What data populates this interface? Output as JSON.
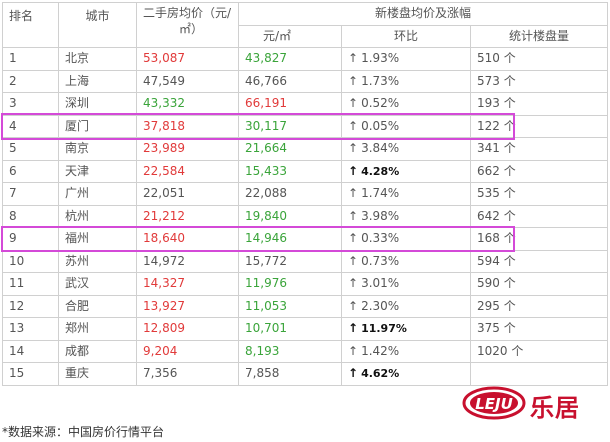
{
  "table": {
    "headers": {
      "rank": "排名",
      "city": "城市",
      "secondhand_line1": "二手房均价（元/",
      "secondhand_line2": "㎡）",
      "newhouse_group": "新楼盘均价及涨幅",
      "newhouse_price": "元/㎡",
      "mom": "环比",
      "count": "统计楼盘量"
    },
    "rows": [
      {
        "rank": "1",
        "city": "北京",
        "secondhand": "53,087",
        "secondhand_color": "red",
        "newprice": "43,827",
        "newprice_color": "green",
        "mom": "1.93%",
        "mom_bold": false,
        "count": "510 个"
      },
      {
        "rank": "2",
        "city": "上海",
        "secondhand": "47,549",
        "secondhand_color": "gray",
        "newprice": "46,766",
        "newprice_color": "gray",
        "mom": "1.73%",
        "mom_bold": false,
        "count": "573 个"
      },
      {
        "rank": "3",
        "city": "深圳",
        "secondhand": "43,332",
        "secondhand_color": "green",
        "newprice": "66,191",
        "newprice_color": "red",
        "mom": "0.52%",
        "mom_bold": false,
        "count": "193 个"
      },
      {
        "rank": "4",
        "city": "厦门",
        "secondhand": "37,818",
        "secondhand_color": "red",
        "newprice": "30,117",
        "newprice_color": "green",
        "mom": "0.05%",
        "mom_bold": false,
        "count": "122 个"
      },
      {
        "rank": "5",
        "city": "南京",
        "secondhand": "23,989",
        "secondhand_color": "red",
        "newprice": "21,664",
        "newprice_color": "green",
        "mom": "3.84%",
        "mom_bold": false,
        "count": "341 个"
      },
      {
        "rank": "6",
        "city": "天津",
        "secondhand": "22,584",
        "secondhand_color": "red",
        "newprice": "15,433",
        "newprice_color": "green",
        "mom": "4.28%",
        "mom_bold": true,
        "count": "662 个"
      },
      {
        "rank": "7",
        "city": "广州",
        "secondhand": "22,051",
        "secondhand_color": "gray",
        "newprice": "22,088",
        "newprice_color": "gray",
        "mom": "1.74%",
        "mom_bold": false,
        "count": "535 个"
      },
      {
        "rank": "8",
        "city": "杭州",
        "secondhand": "21,212",
        "secondhand_color": "red",
        "newprice": "19,840",
        "newprice_color": "green",
        "mom": "3.98%",
        "mom_bold": false,
        "count": "642 个"
      },
      {
        "rank": "9",
        "city": "福州",
        "secondhand": "18,640",
        "secondhand_color": "red",
        "newprice": "14,946",
        "newprice_color": "green",
        "mom": "0.33%",
        "mom_bold": false,
        "count": "168 个"
      },
      {
        "rank": "10",
        "city": "苏州",
        "secondhand": "14,972",
        "secondhand_color": "gray",
        "newprice": "15,772",
        "newprice_color": "gray",
        "mom": "0.73%",
        "mom_bold": false,
        "count": "594 个"
      },
      {
        "rank": "11",
        "city": "武汉",
        "secondhand": "14,327",
        "secondhand_color": "red",
        "newprice": "11,976",
        "newprice_color": "green",
        "mom": "3.01%",
        "mom_bold": false,
        "count": "590 个"
      },
      {
        "rank": "12",
        "city": "合肥",
        "secondhand": "13,927",
        "secondhand_color": "red",
        "newprice": "11,053",
        "newprice_color": "green",
        "mom": "2.30%",
        "mom_bold": false,
        "count": "295 个"
      },
      {
        "rank": "13",
        "city": "郑州",
        "secondhand": "12,809",
        "secondhand_color": "red",
        "newprice": "10,701",
        "newprice_color": "green",
        "mom": "11.97%",
        "mom_bold": true,
        "count": "375 个"
      },
      {
        "rank": "14",
        "city": "成都",
        "secondhand": "9,204",
        "secondhand_color": "red",
        "newprice": "8,193",
        "newprice_color": "green",
        "mom": "1.42%",
        "mom_bold": false,
        "count": "1020 个"
      },
      {
        "rank": "15",
        "city": "重庆",
        "secondhand": "7,356",
        "secondhand_color": "gray",
        "newprice": "7,858",
        "newprice_color": "gray",
        "mom": "4.62%",
        "mom_bold": true,
        "count": ""
      }
    ],
    "highlighted_ranks": [
      "4",
      "9"
    ]
  },
  "footer": {
    "source": "*数据来源：中国房价行情平台"
  },
  "logo": {
    "latin": "LEJU",
    "chinese": "乐居"
  },
  "icons": {
    "up_arrow": "up-arrow-icon"
  },
  "colors": {
    "red": "#e13a3a",
    "green": "#3aa43a",
    "gray": "#555555",
    "highlight": "#d44ad8",
    "brand": "#c8102e"
  }
}
